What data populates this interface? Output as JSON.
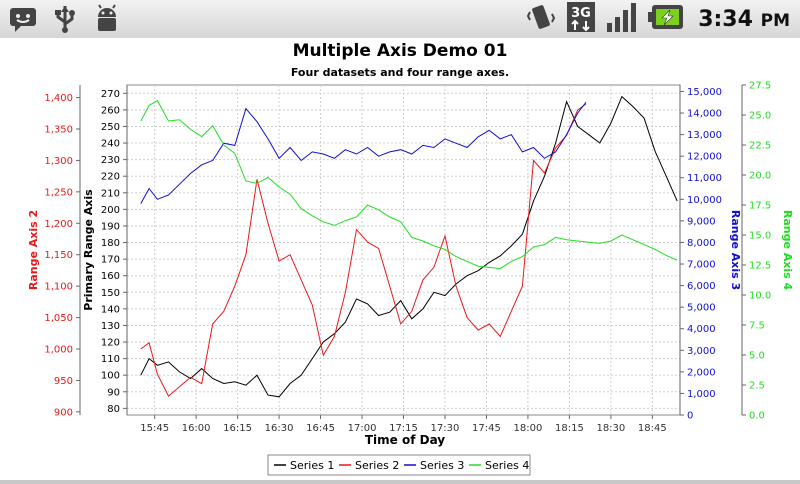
{
  "status_bar": {
    "time": "3:34",
    "ampm": "PM",
    "icons_left": [
      "notification-icon",
      "usb-icon",
      "android-debug-icon"
    ],
    "icons_right": [
      "vibrate-icon",
      "3g-data-icon",
      "signal-icon",
      "battery-charging-icon"
    ],
    "network_label": "3G"
  },
  "chart_data": {
    "type": "line",
    "title": "Multiple Axis Demo 01",
    "subtitle": "Four datasets and four range axes.",
    "xlabel": "Time of Day",
    "x_ticks": [
      "15:45",
      "16:00",
      "16:15",
      "16:30",
      "16:45",
      "17:00",
      "17:15",
      "17:30",
      "17:45",
      "18:00",
      "18:15",
      "18:30",
      "18:45"
    ],
    "x_range": [
      "15:35",
      "18:55"
    ],
    "grid": true,
    "legend_position": "bottom",
    "axes": {
      "primary": {
        "label": "Primary Range Axis",
        "color": "#000000",
        "range": [
          76,
          275
        ],
        "ticks": [
          80,
          90,
          100,
          110,
          120,
          130,
          140,
          150,
          160,
          170,
          180,
          190,
          200,
          210,
          220,
          230,
          240,
          250,
          260,
          270
        ]
      },
      "axis2": {
        "label": "Range Axis 2",
        "color": "#e8191a",
        "range": [
          895,
          1420
        ],
        "ticks": [
          "900",
          "950",
          "1,000",
          "1,050",
          "1,100",
          "1,150",
          "1,200",
          "1,250",
          "1,300",
          "1,350",
          "1,400"
        ]
      },
      "axis3": {
        "label": "Range Axis 3",
        "color": "#1010d0",
        "range": [
          0,
          15300
        ],
        "ticks": [
          "0",
          "1,000",
          "2,000",
          "3,000",
          "4,000",
          "5,000",
          "6,000",
          "7,000",
          "8,000",
          "9,000",
          "10,000",
          "11,000",
          "12,000",
          "13,000",
          "14,000",
          "15,000"
        ]
      },
      "axis4": {
        "label": "Range Axis 4",
        "color": "#22dd22",
        "range": [
          0,
          27.5
        ],
        "ticks": [
          "0.0",
          "2.5",
          "5.0",
          "7.5",
          "10.0",
          "12.5",
          "15.0",
          "17.5",
          "20.0",
          "22.5",
          "25.0",
          "27.5"
        ]
      }
    },
    "series": [
      {
        "name": "Series 1",
        "axis": "primary",
        "color": "#000000",
        "x": [
          "15:40",
          "15:43",
          "15:46",
          "15:50",
          "15:54",
          "15:58",
          "16:02",
          "16:06",
          "16:10",
          "16:14",
          "16:18",
          "16:22",
          "16:26",
          "16:30",
          "16:34",
          "16:38",
          "16:42",
          "16:46",
          "16:50",
          "16:54",
          "16:58",
          "17:02",
          "17:06",
          "17:10",
          "17:14",
          "17:18",
          "17:22",
          "17:26",
          "17:30",
          "17:34",
          "17:38",
          "17:42",
          "17:46",
          "17:50",
          "17:54",
          "17:58",
          "18:02",
          "18:06",
          "18:10",
          "18:14",
          "18:18",
          "18:22",
          "18:26",
          "18:30",
          "18:34",
          "18:38",
          "18:42",
          "18:46",
          "18:50",
          "18:54"
        ],
        "values": [
          100,
          110,
          106,
          108,
          102,
          98,
          104,
          98,
          95,
          96,
          94,
          100,
          88,
          87,
          95,
          100,
          110,
          120,
          125,
          132,
          146,
          143,
          136,
          138,
          145,
          134,
          140,
          150,
          148,
          155,
          160,
          163,
          168,
          172,
          178,
          185,
          205,
          220,
          240,
          265,
          250,
          245,
          240,
          252,
          268,
          262,
          255,
          235,
          220,
          205
        ]
      },
      {
        "name": "Series 2",
        "axis": "axis2",
        "color": "#e8191a",
        "x": [
          "15:40",
          "15:43",
          "15:46",
          "15:50",
          "15:54",
          "15:58",
          "16:02",
          "16:06",
          "16:10",
          "16:14",
          "16:18",
          "16:22",
          "16:26",
          "16:30",
          "16:34",
          "16:38",
          "16:42",
          "16:46",
          "16:50",
          "16:54",
          "16:58",
          "17:02",
          "17:06",
          "17:10",
          "17:14",
          "17:18",
          "17:22",
          "17:26",
          "17:30",
          "17:34",
          "17:38",
          "17:42",
          "17:46",
          "17:50",
          "17:54",
          "17:58",
          "18:02",
          "18:06",
          "18:10",
          "18:14",
          "18:18",
          "18:21"
        ],
        "values": [
          1000,
          1010,
          960,
          925,
          940,
          955,
          945,
          1040,
          1060,
          1100,
          1150,
          1270,
          1200,
          1140,
          1150,
          1110,
          1070,
          990,
          1020,
          1090,
          1190,
          1170,
          1160,
          1100,
          1040,
          1060,
          1110,
          1130,
          1180,
          1100,
          1050,
          1030,
          1040,
          1020,
          1060,
          1100,
          1300,
          1280,
          1320,
          1340,
          1380,
          1390
        ]
      },
      {
        "name": "Series 3",
        "axis": "axis3",
        "color": "#1010d0",
        "x": [
          "15:40",
          "15:43",
          "15:46",
          "15:50",
          "15:54",
          "15:58",
          "16:02",
          "16:06",
          "16:10",
          "16:14",
          "16:18",
          "16:22",
          "16:26",
          "16:30",
          "16:34",
          "16:38",
          "16:42",
          "16:46",
          "16:50",
          "16:54",
          "16:58",
          "17:02",
          "17:06",
          "17:10",
          "17:14",
          "17:18",
          "17:22",
          "17:26",
          "17:30",
          "17:34",
          "17:38",
          "17:42",
          "17:46",
          "17:50",
          "17:54",
          "17:58",
          "18:02",
          "18:06",
          "18:10",
          "18:14",
          "18:18",
          "18:21"
        ],
        "values": [
          9800,
          10500,
          10000,
          10200,
          10700,
          11200,
          11600,
          11800,
          12600,
          12500,
          14200,
          13600,
          12800,
          11900,
          12400,
          11800,
          12200,
          12100,
          11900,
          12300,
          12100,
          12400,
          12000,
          12200,
          12300,
          12100,
          12500,
          12400,
          12800,
          12600,
          12400,
          12900,
          13200,
          12800,
          13000,
          12200,
          12400,
          11900,
          12200,
          13000,
          14000,
          14500
        ]
      },
      {
        "name": "Series 4",
        "axis": "axis4",
        "color": "#22dd22",
        "x": [
          "15:40",
          "15:43",
          "15:46",
          "15:50",
          "15:54",
          "15:58",
          "16:02",
          "16:06",
          "16:10",
          "16:14",
          "16:18",
          "16:22",
          "16:26",
          "16:30",
          "16:34",
          "16:38",
          "16:42",
          "16:46",
          "16:50",
          "16:54",
          "16:58",
          "17:02",
          "17:06",
          "17:10",
          "17:14",
          "17:18",
          "17:22",
          "17:26",
          "17:30",
          "17:34",
          "17:38",
          "17:42",
          "17:46",
          "17:50",
          "17:54",
          "17:58",
          "18:02",
          "18:06",
          "18:10",
          "18:14",
          "18:18",
          "18:22",
          "18:26",
          "18:30",
          "18:34",
          "18:38",
          "18:42",
          "18:46",
          "18:50",
          "18:54"
        ],
        "values": [
          24.5,
          25.8,
          26.2,
          24.5,
          24.6,
          23.8,
          23.2,
          24.1,
          22.5,
          21.8,
          19.5,
          19.3,
          19.8,
          19.0,
          18.4,
          17.2,
          16.6,
          16.1,
          15.8,
          16.2,
          16.5,
          17.5,
          17.1,
          16.5,
          16.1,
          14.8,
          14.5,
          14.1,
          13.8,
          13.2,
          12.8,
          12.4,
          12.3,
          12.2,
          12.8,
          13.2,
          14.0,
          14.2,
          14.8,
          14.6,
          14.5,
          14.4,
          14.3,
          14.5,
          15.0,
          14.6,
          14.2,
          13.8,
          13.3,
          12.9
        ]
      }
    ]
  }
}
